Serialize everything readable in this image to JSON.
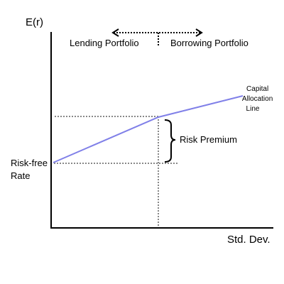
{
  "diagram": {
    "y_axis_label": "E(r)",
    "x_axis_label": "Std. Dev.",
    "lending_label": "Lending Portfolio",
    "borrowing_label": "Borrowing Portfolio",
    "cal_label_lines": [
      "Capital",
      "Allocation",
      "Line"
    ],
    "risk_premium_label": "Risk Premium",
    "risk_free_label_lines": [
      "Risk-free",
      "Rate"
    ]
  },
  "colors": {
    "cal_line": "#8080e8",
    "guide_lines": "#888888",
    "axes": "#000000"
  }
}
